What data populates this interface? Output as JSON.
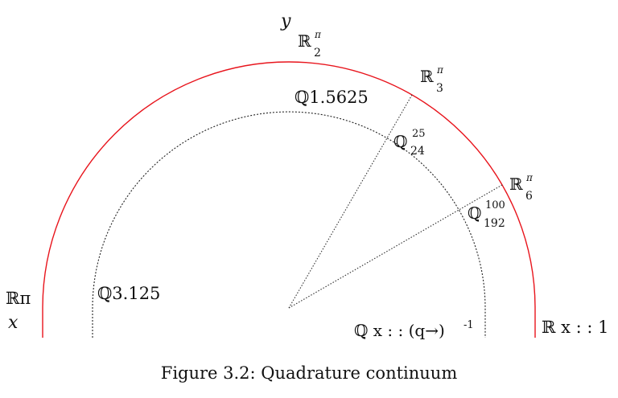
{
  "axes": {
    "y_label": "y",
    "x_label": "x"
  },
  "outer_arc": {
    "color": "#e8141c",
    "top_label": {
      "base": "ℝ",
      "num": "π",
      "den": "2"
    },
    "label_60": {
      "base": "ℝ",
      "num": "π",
      "den": "3"
    },
    "label_30": {
      "base": "ℝ",
      "num": "π",
      "den": "6"
    },
    "left_label": "ℝπ",
    "right_label": "ℝ x : : 1"
  },
  "inner_arc": {
    "color": "#222222",
    "top_label": "ℚ1.5625",
    "left_label": "ℚ3.125",
    "label_60": {
      "base": "ℚ",
      "num": "25",
      "den": "24"
    },
    "label_30": {
      "base": "ℚ",
      "num": "100",
      "den": "192"
    },
    "bottom_label": "ℚ x : : (q→)",
    "bottom_label_sup": "-1"
  },
  "caption": "Figure 3.2: Quadrature continuum"
}
